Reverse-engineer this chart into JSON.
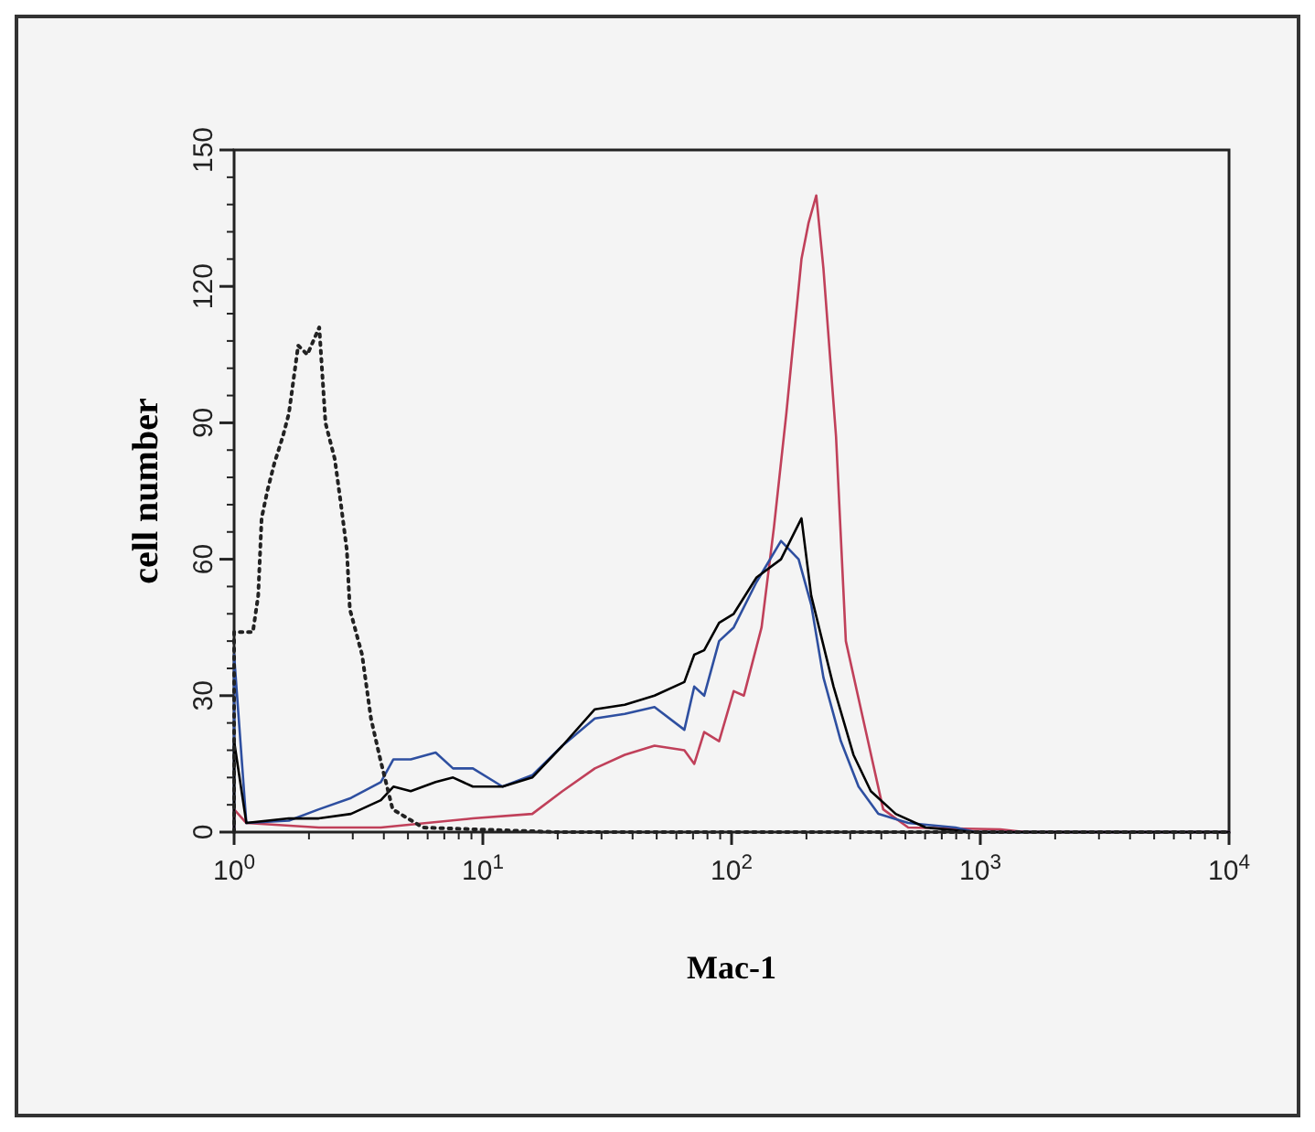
{
  "chart_data": {
    "type": "line",
    "xlabel": "Mac-1",
    "ylabel": "cell number",
    "log": "x",
    "xlim": [
      1,
      10000
    ],
    "xticks": [
      {
        "value": 1,
        "label": "10$^{0}$"
      },
      {
        "value": 10,
        "label": "10$^{1}$"
      },
      {
        "value": 100,
        "label": "10$^{2}$"
      },
      {
        "value": 1000,
        "label": "10$^{3}$"
      },
      {
        "value": 10000,
        "label": "10$^{4}$"
      }
    ],
    "ylim": [
      0,
      150
    ],
    "yticks": [
      0,
      30,
      60,
      90,
      120,
      150
    ],
    "grid": false,
    "series": [
      {
        "color": "#222222",
        "line_style": "dotted",
        "x": [
          1,
          1,
          1.19,
          1.25,
          1.29,
          1.36,
          1.45,
          1.57,
          1.66,
          1.81,
          1.97,
          2.2,
          2.33,
          2.54,
          2.69,
          2.84,
          2.92,
          3.27,
          3.55,
          3.87,
          4.34,
          5.75,
          20,
          10000
        ],
        "values": [
          0,
          44,
          44,
          52,
          69,
          75,
          81,
          87,
          92,
          107,
          105,
          111,
          90,
          82,
          72,
          62,
          49,
          39,
          25,
          16,
          5,
          1,
          0,
          0
        ]
      },
      {
        "color": "#000000",
        "line_style": "solid",
        "x": [
          1,
          1,
          1.12,
          1.66,
          2.19,
          2.95,
          3.89,
          4.37,
          5.13,
          6.46,
          7.59,
          9.12,
          12.0,
          15.8,
          20.9,
          28.2,
          37.2,
          49.0,
          64.6,
          70.8,
          77.6,
          89.1,
          102,
          126,
          158,
          191,
          209,
          257,
          309,
          363,
          457,
          603,
          955,
          10000
        ],
        "values": [
          0,
          20,
          2,
          3,
          3,
          4,
          7,
          10,
          9,
          11,
          12,
          10,
          10,
          12,
          19,
          27,
          28,
          30,
          33,
          39,
          40,
          46,
          48,
          56,
          60,
          69,
          52,
          32,
          17,
          9,
          4,
          1,
          0,
          0
        ]
      },
      {
        "color": "#2e4fa0",
        "line_style": "solid",
        "x": [
          1,
          1,
          1.12,
          1.66,
          2.19,
          2.95,
          3.89,
          4.37,
          5.13,
          6.46,
          7.59,
          9.12,
          12.0,
          15.8,
          20.9,
          28.2,
          37.2,
          49.0,
          64.6,
          70.8,
          77.6,
          89.1,
          102,
          126,
          158,
          186,
          209,
          234,
          275,
          324,
          389,
          513,
          794,
          955,
          10000
        ],
        "values": [
          0,
          39,
          2,
          2.5,
          5,
          7.5,
          11,
          16,
          16,
          17.5,
          14,
          14,
          10,
          12.5,
          19,
          25,
          26,
          27.5,
          22.5,
          32,
          30,
          42,
          45,
          55,
          64,
          60,
          50,
          34,
          20,
          10,
          4,
          2,
          1,
          0,
          0
        ]
      },
      {
        "color": "#c0405a",
        "line_style": "solid",
        "x": [
          1,
          1,
          1.12,
          2.19,
          3.89,
          9.12,
          15.8,
          20.9,
          28.2,
          37.2,
          49.0,
          64.6,
          70.8,
          77.6,
          89.1,
          102,
          112,
          132,
          148,
          166,
          191,
          204,
          219,
          234,
          263,
          288,
          347,
          407,
          513,
          1202,
          1514,
          10000
        ],
        "values": [
          0,
          5,
          2,
          1,
          1,
          3,
          4,
          9,
          14,
          17,
          19,
          18,
          15,
          22,
          20,
          31,
          30,
          45,
          67,
          92,
          126,
          134,
          140,
          124,
          87,
          42,
          22,
          5,
          1,
          0.6,
          0,
          0
        ]
      }
    ]
  }
}
